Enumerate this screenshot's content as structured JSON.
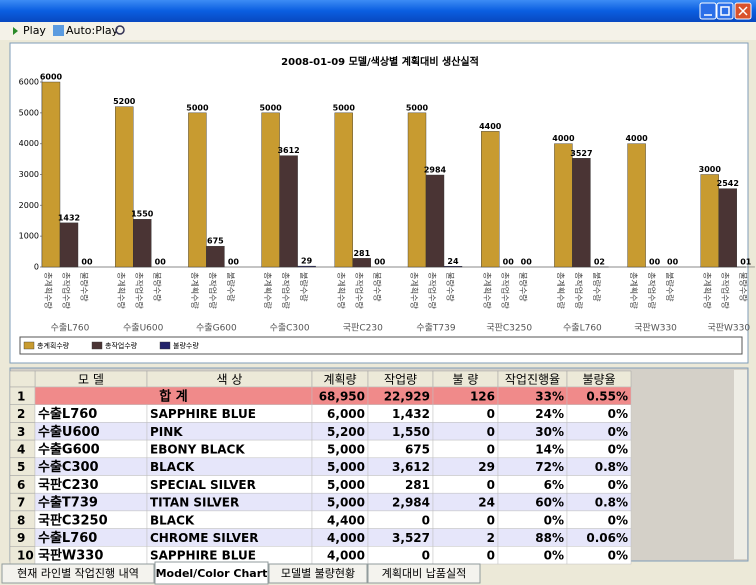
{
  "toolbar": {
    "play": "Play",
    "auto_play": "Auto:Play"
  },
  "chart_data": {
    "type": "bar",
    "title": "2008-01-09 모델/색상별 계획대비 생산실적",
    "categories": [
      "수출L760",
      "수출U600",
      "수출G600",
      "수출C300",
      "국판C230",
      "수출T739",
      "국판C3250",
      "수출L760",
      "국판W330",
      "국판W330"
    ],
    "series": [
      {
        "name": "총계획수량",
        "color": "#c89b30",
        "values": [
          6000,
          5200,
          5000,
          5000,
          5000,
          5000,
          4400,
          4000,
          4000,
          3000
        ]
      },
      {
        "name": "총작업수량",
        "color": "#4a3434",
        "values": [
          1432,
          1550,
          675,
          3612,
          281,
          2984,
          0,
          3527,
          0,
          2542
        ],
        "value_labels": [
          "1432",
          "1550",
          "675",
          "3612",
          "281",
          "2984",
          "00",
          "3527",
          "00",
          "2542"
        ]
      },
      {
        "name": "불량수량",
        "color": "#22226a",
        "values": [
          0,
          0,
          0,
          29,
          0,
          24,
          0,
          2,
          0,
          1
        ],
        "value_labels": [
          "00",
          "00",
          "00",
          "29",
          "00",
          "24",
          "00",
          "02",
          "00",
          "01"
        ]
      }
    ],
    "ylim": [
      0,
      6000
    ],
    "yticks": [
      0,
      1000,
      2000,
      3000,
      4000,
      5000,
      6000
    ],
    "grid": false,
    "legend": "bottom"
  },
  "table": {
    "columns": [
      "모 델",
      "색 상",
      "계획량",
      "작업량",
      "불 량",
      "작업진행율",
      "불량율"
    ],
    "rows": [
      [
        "1",
        "합 계",
        "68,950",
        "22,929",
        "126",
        "33%",
        "0.55%"
      ],
      [
        "2",
        "수출L760",
        "SAPPHIRE BLUE",
        "6,000",
        "1,432",
        "0",
        "24%",
        "0%"
      ],
      [
        "3",
        "수출U600",
        "PINK",
        "5,200",
        "1,550",
        "0",
        "30%",
        "0%"
      ],
      [
        "4",
        "수출G600",
        "EBONY BLACK",
        "5,000",
        "675",
        "0",
        "14%",
        "0%"
      ],
      [
        "5",
        "수출C300",
        "BLACK",
        "5,000",
        "3,612",
        "29",
        "72%",
        "0.8%"
      ],
      [
        "6",
        "국판C230",
        "SPECIAL SILVER",
        "5,000",
        "281",
        "0",
        "6%",
        "0%"
      ],
      [
        "7",
        "수출T739",
        "TITAN SILVER",
        "5,000",
        "2,984",
        "24",
        "60%",
        "0.8%"
      ],
      [
        "8",
        "국판C3250",
        "BLACK",
        "4,400",
        "0",
        "0",
        "0%",
        "0%"
      ],
      [
        "9",
        "수출L760",
        "CHROME SILVER",
        "4,000",
        "3,527",
        "2",
        "88%",
        "0.06%"
      ],
      [
        "10",
        "국판W330",
        "SAPPHIRE BLUE",
        "4,000",
        "0",
        "0",
        "0%",
        "0%"
      ]
    ]
  },
  "tabs": [
    "현재 라인별 작업진행 내역",
    "Model/Color Chart",
    "모델별 불량현황",
    "계획대비 납품실적"
  ]
}
